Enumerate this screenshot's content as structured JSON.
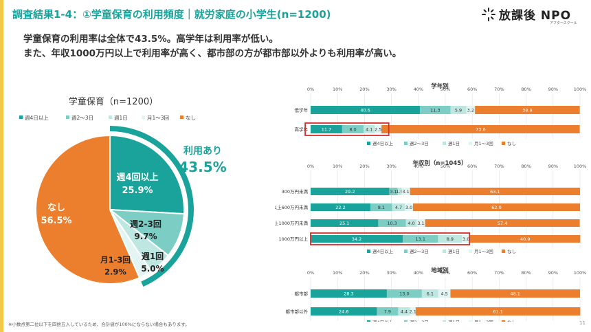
{
  "header": {
    "title": "調査結果1-4：①学童保育の利用頻度｜就労家庭の小学生(n=1200)",
    "logo_text": "放課後 NPO",
    "logo_sub": "アフタースクール"
  },
  "summary": {
    "line1": "学童保育の利用率は全体で43.5%。高学年は利用率が低い。",
    "line2": "また、年収1000万円以上で利用率が高く、都市部の方が都市部以外よりも利用率が高い。"
  },
  "footnote": "※小数点第二位以下を四捨五入しているため、合計値が100%にならない場合もあります。",
  "page_number": "11",
  "legend_labels": [
    "週4日以上",
    "週2～3日",
    "週1日",
    "月1～3回",
    "なし"
  ],
  "colors": {
    "teal": "#1aa39b",
    "mid_teal": "#7ccdc3",
    "light_teal": "#bfe7e2",
    "pale_teal": "#e3f5f2",
    "orange": "#ec7f2d",
    "highlight": "#d32f2f",
    "accent_bar": "#f2c84b"
  },
  "chart_data": [
    {
      "type": "pie",
      "title": "学童保育（n=1200）",
      "legend": [
        "週4日以上",
        "週2～3日",
        "週1日",
        "月1～3回",
        "なし"
      ],
      "slices": [
        {
          "name": "週4回以上",
          "value": 25.9
        },
        {
          "name": "週2-3回",
          "value": 9.7
        },
        {
          "name": "週1回",
          "value": 5.0
        },
        {
          "name": "月1-3回",
          "value": 2.9
        },
        {
          "name": "なし",
          "value": 56.5
        }
      ],
      "value_labels": [
        "25.9%",
        "9.7%",
        "5.0%",
        "2.9%",
        "56.5%"
      ],
      "usage_label": "利用あり",
      "usage_value": "43.5%"
    },
    {
      "type": "bar",
      "orientation": "horizontal",
      "stacked": true,
      "title": "学年別",
      "categories": [
        "低学年",
        "高学年"
      ],
      "series": [
        {
          "name": "週4日以上",
          "values": [
            40.6,
            11.7
          ]
        },
        {
          "name": "週2～3日",
          "values": [
            11.3,
            8.0
          ]
        },
        {
          "name": "週1日",
          "values": [
            5.9,
            4.1
          ]
        },
        {
          "name": "月1～3回",
          "values": [
            3.2,
            2.5
          ]
        },
        {
          "name": "なし",
          "values": [
            38.9,
            73.6
          ]
        }
      ],
      "labels": [
        [
          "40.6",
          "11.3",
          "5.9",
          "3.2",
          "38.9"
        ],
        [
          "11.7",
          "8.0",
          "4.1",
          "2.5",
          "73.6"
        ]
      ],
      "highlight": [
        "高学年"
      ],
      "xlim": [
        0,
        100
      ],
      "ticks": [
        "0%",
        "10%",
        "20%",
        "30%",
        "40%",
        "50%",
        "60%",
        "70%",
        "80%",
        "90%",
        "100%"
      ]
    },
    {
      "type": "bar",
      "orientation": "horizontal",
      "stacked": true,
      "title": "年収別（n=1045）",
      "categories": [
        "300万円未満",
        "300万円以上600万円未満",
        "600万円以上1000万円未満",
        "1000万円以上"
      ],
      "series": [
        {
          "name": "週4日以上",
          "values": [
            29.2,
            22.2,
            25.1,
            34.2
          ]
        },
        {
          "name": "週2～3日",
          "values": [
            3.1,
            8.1,
            10.3,
            13.1
          ]
        },
        {
          "name": "週1日",
          "values": [
            1.5,
            4.7,
            4.0,
            8.9
          ]
        },
        {
          "name": "月1～3回",
          "values": [
            3.1,
            3.0,
            3.1,
            3.0
          ]
        },
        {
          "name": "なし",
          "values": [
            63.1,
            62.0,
            57.4,
            40.9
          ]
        }
      ],
      "labels": [
        [
          "29.2",
          "3.1",
          "1.5",
          "3.1",
          "63.1"
        ],
        [
          "22.2",
          "8.1",
          "4.7",
          "3.0",
          "62.0"
        ],
        [
          "25.1",
          "10.3",
          "4.0",
          "3.1",
          "57.4"
        ],
        [
          "34.2",
          "13.1",
          "8.9",
          "3.0",
          "40.9"
        ]
      ],
      "highlight": [
        "1000万円以上"
      ],
      "xlim": [
        0,
        100
      ],
      "ticks": [
        "0%",
        "10%",
        "20%",
        "30%",
        "40%",
        "50%",
        "60%",
        "70%",
        "80%",
        "90%",
        "100%"
      ]
    },
    {
      "type": "bar",
      "orientation": "horizontal",
      "stacked": true,
      "title": "地域別",
      "categories": [
        "都市部",
        "都市部以外"
      ],
      "series": [
        {
          "name": "週4日以上",
          "values": [
            28.3,
            24.6
          ]
        },
        {
          "name": "週2～3日",
          "values": [
            13.0,
            7.9
          ]
        },
        {
          "name": "週1日",
          "values": [
            6.1,
            4.4
          ]
        },
        {
          "name": "月1～3回",
          "values": [
            4.5,
            2.1
          ]
        },
        {
          "name": "なし",
          "values": [
            48.1,
            61.1
          ]
        }
      ],
      "labels": [
        [
          "28.3",
          "13.0",
          "6.1",
          "4.5",
          "48.1"
        ],
        [
          "24.6",
          "7.9",
          "4.4",
          "2.1",
          "61.1"
        ]
      ],
      "highlight": [],
      "xlim": [
        0,
        100
      ],
      "ticks": [
        "0%",
        "10%",
        "20%",
        "30%",
        "40%",
        "50%",
        "60%",
        "70%",
        "80%",
        "90%",
        "100%"
      ]
    }
  ]
}
